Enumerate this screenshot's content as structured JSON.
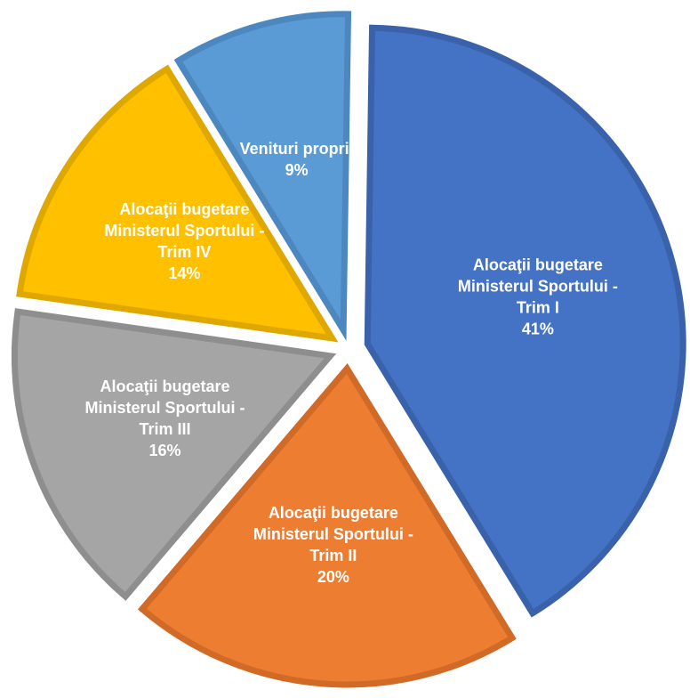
{
  "chart_data": {
    "type": "pie",
    "title": "",
    "categories": [
      "Alocaţii bugetare Ministerul Sportului - Trim I",
      "Alocaţii bugetare Ministerul Sportului - Trim II",
      "Alocaţii bugetare Ministerul Sportului - Trim III",
      "Alocaţii bugetare Ministerul Sportului - Trim IV",
      "Venituri proprii"
    ],
    "values": [
      41,
      20,
      16,
      14,
      9
    ],
    "unit": "%",
    "slices": [
      {
        "label_lines": [
          "Alocaţii bugetare",
          "Ministerul Sportului -",
          "Trim I"
        ],
        "value_label": "41%",
        "value": 41,
        "color": "#4472C4",
        "border_color": "#3A62AA"
      },
      {
        "label_lines": [
          "Alocaţii bugetare",
          "Ministerul Sportului -",
          "Trim II"
        ],
        "value_label": "20%",
        "value": 20,
        "color": "#ED7D31",
        "border_color": "#D16A26"
      },
      {
        "label_lines": [
          "Alocaţii bugetare",
          "Ministerul Sportului -",
          "Trim III"
        ],
        "value_label": "16%",
        "value": 16,
        "color": "#A5A5A5",
        "border_color": "#8E8E8E"
      },
      {
        "label_lines": [
          "Alocaţii bugetare",
          "Ministerul Sportului -",
          "Trim IV"
        ],
        "value_label": "14%",
        "value": 14,
        "color": "#FFC000",
        "border_color": "#DFA800"
      },
      {
        "label_lines": [
          "Venituri proprii"
        ],
        "value_label": "9%",
        "value": 9,
        "color": "#5B9BD5",
        "border_color": "#4C88BF"
      }
    ],
    "exploded": true,
    "legend": "none"
  }
}
